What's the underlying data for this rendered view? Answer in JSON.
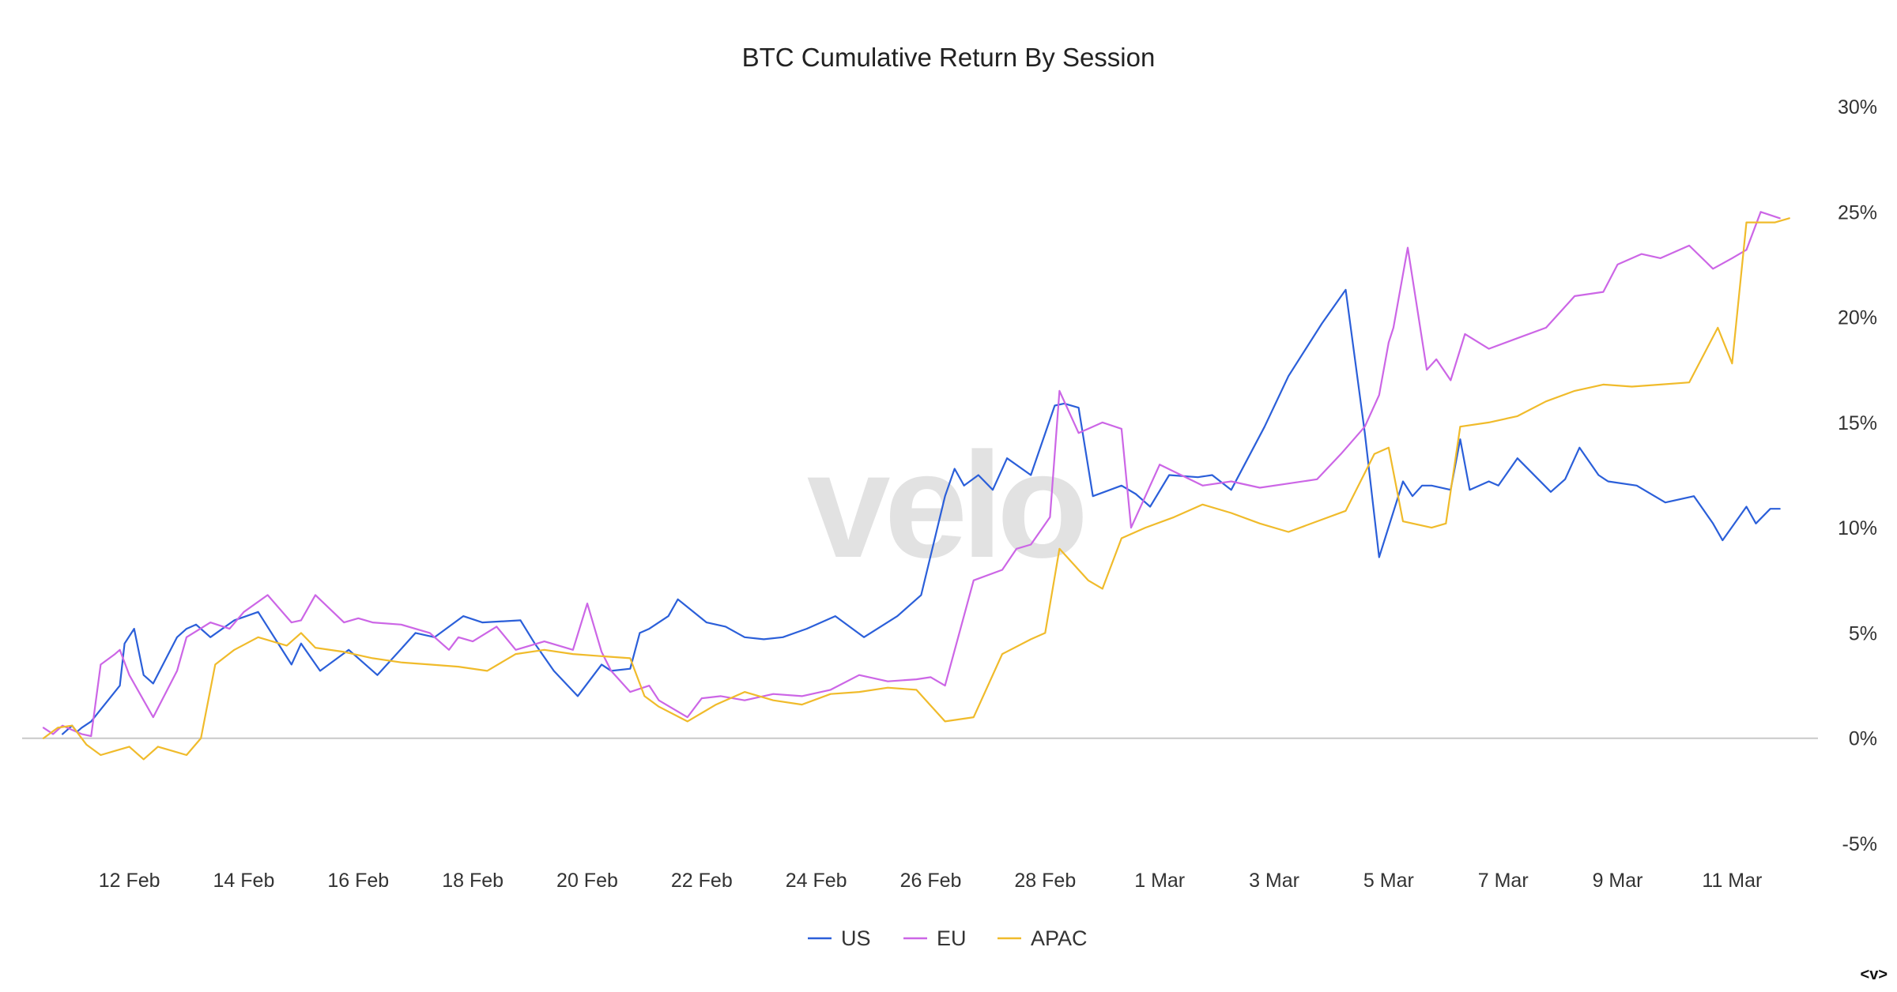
{
  "watermark": "velo",
  "corner_text": "<v>",
  "colors": {
    "US": "#2b5fd9",
    "EU": "#cc66e6",
    "APAC": "#f0bb2b",
    "zero_line": "#c8c8c8"
  },
  "chart_data": {
    "type": "line",
    "title": "BTC Cumulative Return By Session",
    "xlabel": "",
    "ylabel": "",
    "y_axis_side": "right",
    "y_unit": "%",
    "ylim": [
      -5,
      30
    ],
    "yticks": [
      -5,
      0,
      5,
      10,
      15,
      20,
      25,
      30
    ],
    "ytick_labels": [
      "-5%",
      "0%",
      "5%",
      "10%",
      "15%",
      "20%",
      "25%",
      "30%"
    ],
    "xlim": [
      "2024-02-11",
      "2024-03-13"
    ],
    "xticks": [
      "2024-02-12",
      "2024-02-14",
      "2024-02-16",
      "2024-02-18",
      "2024-02-20",
      "2024-02-22",
      "2024-02-24",
      "2024-02-26",
      "2024-02-28",
      "2024-03-01",
      "2024-03-03",
      "2024-03-05",
      "2024-03-07",
      "2024-03-09",
      "2024-03-11"
    ],
    "xtick_labels": [
      "12 Feb",
      "14 Feb",
      "16 Feb",
      "18 Feb",
      "20 Feb",
      "22 Feb",
      "24 Feb",
      "26 Feb",
      "28 Feb",
      "1 Mar",
      "3 Mar",
      "5 Mar",
      "7 Mar",
      "9 Mar",
      "11 Mar"
    ],
    "legend_position": "bottom-center",
    "grid": false,
    "series": [
      {
        "name": "US",
        "x": [
          "2024-02-11 08:00",
          "2024-02-11 10:00",
          "2024-02-11 12:00",
          "2024-02-11 14:00",
          "2024-02-11 16:00",
          "2024-02-11 20:00",
          "2024-02-12 08:00",
          "2024-02-12 10:00",
          "2024-02-12 14:00",
          "2024-02-12 18:00",
          "2024-02-12 22:00",
          "2024-02-13 08:00",
          "2024-02-13 12:00",
          "2024-02-13 16:00",
          "2024-02-13 22:00",
          "2024-02-14 08:00",
          "2024-02-14 18:00",
          "2024-02-15 08:00",
          "2024-02-15 12:00",
          "2024-02-15 20:00",
          "2024-02-16 08:00",
          "2024-02-16 12:00",
          "2024-02-16 20:00",
          "2024-02-17 08:00",
          "2024-02-17 12:00",
          "2024-02-17 20:00",
          "2024-02-18 08:00",
          "2024-02-18 16:00",
          "2024-02-19 08:00",
          "2024-02-19 14:00",
          "2024-02-19 22:00",
          "2024-02-20 08:00",
          "2024-02-20 18:00",
          "2024-02-20 22:00",
          "2024-02-21 06:00",
          "2024-02-21 10:00",
          "2024-02-21 14:00",
          "2024-02-21 22:00",
          "2024-02-22 02:00",
          "2024-02-22 14:00",
          "2024-02-22 22:00",
          "2024-02-23 06:00",
          "2024-02-23 14:00",
          "2024-02-23 22:00",
          "2024-02-24 08:00",
          "2024-02-24 20:00",
          "2024-02-25 08:00",
          "2024-02-25 22:00",
          "2024-02-26 08:00",
          "2024-02-26 18:00",
          "2024-02-26 22:00",
          "2024-02-27 02:00",
          "2024-02-27 08:00",
          "2024-02-27 14:00",
          "2024-02-27 20:00",
          "2024-02-28 06:00",
          "2024-02-28 16:00",
          "2024-02-28 20:00",
          "2024-02-29 02:00",
          "2024-02-29 08:00",
          "2024-02-29 20:00",
          "2024-03-01 02:00",
          "2024-03-01 08:00",
          "2024-03-01 16:00",
          "2024-03-02 04:00",
          "2024-03-02 10:00",
          "2024-03-02 18:00",
          "2024-03-03 08:00",
          "2024-03-03 18:00",
          "2024-03-04 08:00",
          "2024-03-04 18:00",
          "2024-03-05 02:00",
          "2024-03-05 08:00",
          "2024-03-05 18:00",
          "2024-03-05 22:00",
          "2024-03-06 02:00",
          "2024-03-06 06:00",
          "2024-03-06 14:00",
          "2024-03-06 18:00",
          "2024-03-06 22:00",
          "2024-03-07 06:00",
          "2024-03-07 10:00",
          "2024-03-07 18:00",
          "2024-03-08 08:00",
          "2024-03-08 14:00",
          "2024-03-08 20:00",
          "2024-03-09 04:00",
          "2024-03-09 08:00",
          "2024-03-09 20:00",
          "2024-03-10 08:00",
          "2024-03-10 20:00",
          "2024-03-11 04:00",
          "2024-03-11 08:00",
          "2024-03-11 18:00",
          "2024-03-11 22:00",
          "2024-03-12 04:00",
          "2024-03-12 08:00"
        ],
        "values": [
          0.2,
          0.4,
          0.6,
          0.3,
          0.5,
          0.8,
          2.5,
          4.5,
          5.2,
          3.0,
          2.6,
          4.8,
          5.2,
          5.4,
          4.8,
          5.6,
          6.0,
          3.5,
          4.5,
          3.2,
          4.2,
          3.8,
          3.0,
          4.5,
          5.0,
          4.8,
          5.8,
          5.5,
          5.6,
          4.5,
          3.2,
          2.0,
          3.5,
          3.2,
          3.3,
          5.0,
          5.2,
          5.8,
          6.6,
          5.5,
          5.3,
          4.8,
          4.7,
          4.8,
          5.2,
          5.8,
          4.8,
          5.8,
          6.8,
          11.5,
          12.8,
          12.0,
          12.5,
          11.8,
          13.3,
          12.5,
          15.8,
          15.9,
          15.7,
          11.5,
          12.0,
          11.6,
          11.0,
          12.5,
          12.4,
          12.5,
          11.8,
          14.8,
          17.2,
          19.7,
          21.3,
          14.5,
          8.6,
          12.2,
          11.5,
          12.0,
          12.0,
          11.8,
          14.2,
          11.8,
          12.2,
          12.0,
          13.3,
          11.7,
          12.3,
          13.8,
          12.5,
          12.2,
          12.0,
          11.2,
          11.5,
          10.2,
          9.4,
          11.0,
          10.2,
          10.9,
          10.9
        ]
      },
      {
        "name": "EU",
        "x": [
          "2024-02-11 00:00",
          "2024-02-11 04:00",
          "2024-02-11 08:00",
          "2024-02-11 12:00",
          "2024-02-11 16:00",
          "2024-02-11 20:00",
          "2024-02-12 00:00",
          "2024-02-12 06:00",
          "2024-02-12 08:00",
          "2024-02-12 12:00",
          "2024-02-12 22:00",
          "2024-02-13 08:00",
          "2024-02-13 12:00",
          "2024-02-13 22:00",
          "2024-02-14 06:00",
          "2024-02-14 12:00",
          "2024-02-14 22:00",
          "2024-02-15 08:00",
          "2024-02-15 12:00",
          "2024-02-15 18:00",
          "2024-02-16 06:00",
          "2024-02-16 12:00",
          "2024-02-16 18:00",
          "2024-02-17 06:00",
          "2024-02-17 18:00",
          "2024-02-18 02:00",
          "2024-02-18 06:00",
          "2024-02-18 12:00",
          "2024-02-18 22:00",
          "2024-02-19 06:00",
          "2024-02-19 18:00",
          "2024-02-20 06:00",
          "2024-02-20 12:00",
          "2024-02-20 18:00",
          "2024-02-20 22:00",
          "2024-02-21 06:00",
          "2024-02-21 14:00",
          "2024-02-21 18:00",
          "2024-02-22 06:00",
          "2024-02-22 12:00",
          "2024-02-22 20:00",
          "2024-02-23 06:00",
          "2024-02-23 18:00",
          "2024-02-24 06:00",
          "2024-02-24 18:00",
          "2024-02-25 06:00",
          "2024-02-25 18:00",
          "2024-02-26 06:00",
          "2024-02-26 12:00",
          "2024-02-26 18:00",
          "2024-02-27 06:00",
          "2024-02-27 18:00",
          "2024-02-28 00:00",
          "2024-02-28 06:00",
          "2024-02-28 14:00",
          "2024-02-28 18:00",
          "2024-02-29 02:00",
          "2024-02-29 08:00",
          "2024-02-29 12:00",
          "2024-02-29 20:00",
          "2024-03-01 00:00",
          "2024-03-01 06:00",
          "2024-03-01 12:00",
          "2024-03-02 06:00",
          "2024-03-02 18:00",
          "2024-03-03 06:00",
          "2024-03-03 18:00",
          "2024-03-04 06:00",
          "2024-03-04 16:00",
          "2024-03-05 02:00",
          "2024-03-05 08:00",
          "2024-03-05 12:00",
          "2024-03-05 14:00",
          "2024-03-05 20:00",
          "2024-03-06 04:00",
          "2024-03-06 08:00",
          "2024-03-06 14:00",
          "2024-03-06 20:00",
          "2024-03-07 06:00",
          "2024-03-07 18:00",
          "2024-03-08 06:00",
          "2024-03-08 18:00",
          "2024-03-09 06:00",
          "2024-03-09 12:00",
          "2024-03-09 22:00",
          "2024-03-10 06:00",
          "2024-03-10 18:00",
          "2024-03-11 04:00",
          "2024-03-11 12:00",
          "2024-03-11 18:00",
          "2024-03-12 00:00",
          "2024-03-12 08:00"
        ],
        "values": [
          0.5,
          0.2,
          0.6,
          0.4,
          0.2,
          0.1,
          3.5,
          4.0,
          4.2,
          3.0,
          1.0,
          3.2,
          4.8,
          5.5,
          5.2,
          6.0,
          6.8,
          5.5,
          5.6,
          6.8,
          5.5,
          5.7,
          5.5,
          5.4,
          5.0,
          4.2,
          4.8,
          4.6,
          5.3,
          4.2,
          4.6,
          4.2,
          6.4,
          4.1,
          3.2,
          2.2,
          2.5,
          1.8,
          1.0,
          1.9,
          2.0,
          1.8,
          2.1,
          2.0,
          2.3,
          3.0,
          2.7,
          2.8,
          2.9,
          2.5,
          7.5,
          8.0,
          9.0,
          9.2,
          10.5,
          16.5,
          14.5,
          14.8,
          15.0,
          14.7,
          10.0,
          11.5,
          13.0,
          12.0,
          12.2,
          11.9,
          12.1,
          12.3,
          13.5,
          14.8,
          16.3,
          18.8,
          19.5,
          23.3,
          17.5,
          18.0,
          17.0,
          19.2,
          18.5,
          19.0,
          19.5,
          21.0,
          21.2,
          22.5,
          23.0,
          22.8,
          23.4,
          22.3,
          22.8,
          23.2,
          25.0,
          24.7
        ]
      },
      {
        "name": "APAC",
        "x": [
          "2024-02-11 00:00",
          "2024-02-11 06:00",
          "2024-02-11 12:00",
          "2024-02-11 18:00",
          "2024-02-12 00:00",
          "2024-02-12 06:00",
          "2024-02-12 12:00",
          "2024-02-12 18:00",
          "2024-02-13 00:00",
          "2024-02-13 06:00",
          "2024-02-13 12:00",
          "2024-02-13 18:00",
          "2024-02-14 00:00",
          "2024-02-14 08:00",
          "2024-02-14 18:00",
          "2024-02-15 06:00",
          "2024-02-15 12:00",
          "2024-02-15 18:00",
          "2024-02-16 06:00",
          "2024-02-16 18:00",
          "2024-02-17 06:00",
          "2024-02-17 18:00",
          "2024-02-18 06:00",
          "2024-02-18 18:00",
          "2024-02-19 06:00",
          "2024-02-19 18:00",
          "2024-02-20 06:00",
          "2024-02-20 18:00",
          "2024-02-21 06:00",
          "2024-02-21 12:00",
          "2024-02-21 18:00",
          "2024-02-22 06:00",
          "2024-02-22 18:00",
          "2024-02-23 06:00",
          "2024-02-23 18:00",
          "2024-02-24 06:00",
          "2024-02-24 18:00",
          "2024-02-25 06:00",
          "2024-02-25 18:00",
          "2024-02-26 06:00",
          "2024-02-26 18:00",
          "2024-02-27 06:00",
          "2024-02-27 18:00",
          "2024-02-28 06:00",
          "2024-02-28 12:00",
          "2024-02-28 18:00",
          "2024-02-29 06:00",
          "2024-02-29 12:00",
          "2024-02-29 20:00",
          "2024-03-01 06:00",
          "2024-03-01 18:00",
          "2024-03-02 06:00",
          "2024-03-02 18:00",
          "2024-03-03 06:00",
          "2024-03-03 18:00",
          "2024-03-04 06:00",
          "2024-03-04 18:00",
          "2024-03-05 06:00",
          "2024-03-05 12:00",
          "2024-03-05 18:00",
          "2024-03-06 06:00",
          "2024-03-06 12:00",
          "2024-03-06 18:00",
          "2024-03-07 06:00",
          "2024-03-07 18:00",
          "2024-03-08 06:00",
          "2024-03-08 18:00",
          "2024-03-09 06:00",
          "2024-03-09 18:00",
          "2024-03-10 06:00",
          "2024-03-10 18:00",
          "2024-03-11 06:00",
          "2024-03-11 12:00",
          "2024-03-11 18:00",
          "2024-03-12 06:00",
          "2024-03-12 12:00"
        ],
        "values": [
          0.0,
          0.5,
          0.6,
          -0.3,
          -0.8,
          -0.6,
          -0.4,
          -1.0,
          -0.4,
          -0.6,
          -0.8,
          0.0,
          3.5,
          4.2,
          4.8,
          4.4,
          5.0,
          4.3,
          4.1,
          3.8,
          3.6,
          3.5,
          3.4,
          3.2,
          4.0,
          4.2,
          4.0,
          3.9,
          3.8,
          2.0,
          1.5,
          0.8,
          1.6,
          2.2,
          1.8,
          1.6,
          2.1,
          2.2,
          2.4,
          2.3,
          0.8,
          1.0,
          4.0,
          4.7,
          5.0,
          9.0,
          7.5,
          7.1,
          9.5,
          10.0,
          10.5,
          11.1,
          10.7,
          10.2,
          9.8,
          10.3,
          10.8,
          13.5,
          13.8,
          10.3,
          10.0,
          10.2,
          14.8,
          15.0,
          15.3,
          16.0,
          16.5,
          16.8,
          16.7,
          16.8,
          16.9,
          19.5,
          17.8,
          24.5,
          24.5,
          24.7
        ]
      }
    ]
  }
}
